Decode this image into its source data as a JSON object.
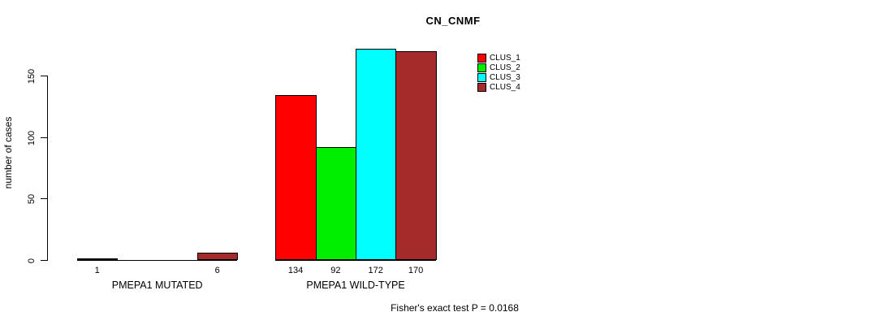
{
  "chart_data": {
    "type": "bar",
    "title": "CN_CNMF",
    "ylabel": "number of cases",
    "xlabel": "",
    "ylim": [
      0,
      175
    ],
    "yticks": [
      0,
      50,
      100,
      150
    ],
    "grid": false,
    "legend_position": "top-right",
    "categories": [
      "PMEPA1 MUTATED",
      "PMEPA1 WILD-TYPE"
    ],
    "series": [
      {
        "name": "CLUS_1",
        "color": "#FF0000",
        "values": [
          1,
          134
        ]
      },
      {
        "name": "CLUS_2",
        "color": "#00EE00",
        "values": [
          0,
          92
        ]
      },
      {
        "name": "CLUS_3",
        "color": "#00FFFF",
        "values": [
          0,
          172
        ]
      },
      {
        "name": "CLUS_4",
        "color": "#A52A2A",
        "values": [
          6,
          170
        ]
      }
    ],
    "bar_value_labels": [
      [
        "1",
        "",
        "",
        "6"
      ],
      [
        "134",
        "92",
        "172",
        "170"
      ]
    ],
    "annotation": "Fisher's exact test P = 0.0168"
  },
  "colors": {
    "background": "#ffffff",
    "axis": "#000000",
    "text": "#000000"
  }
}
